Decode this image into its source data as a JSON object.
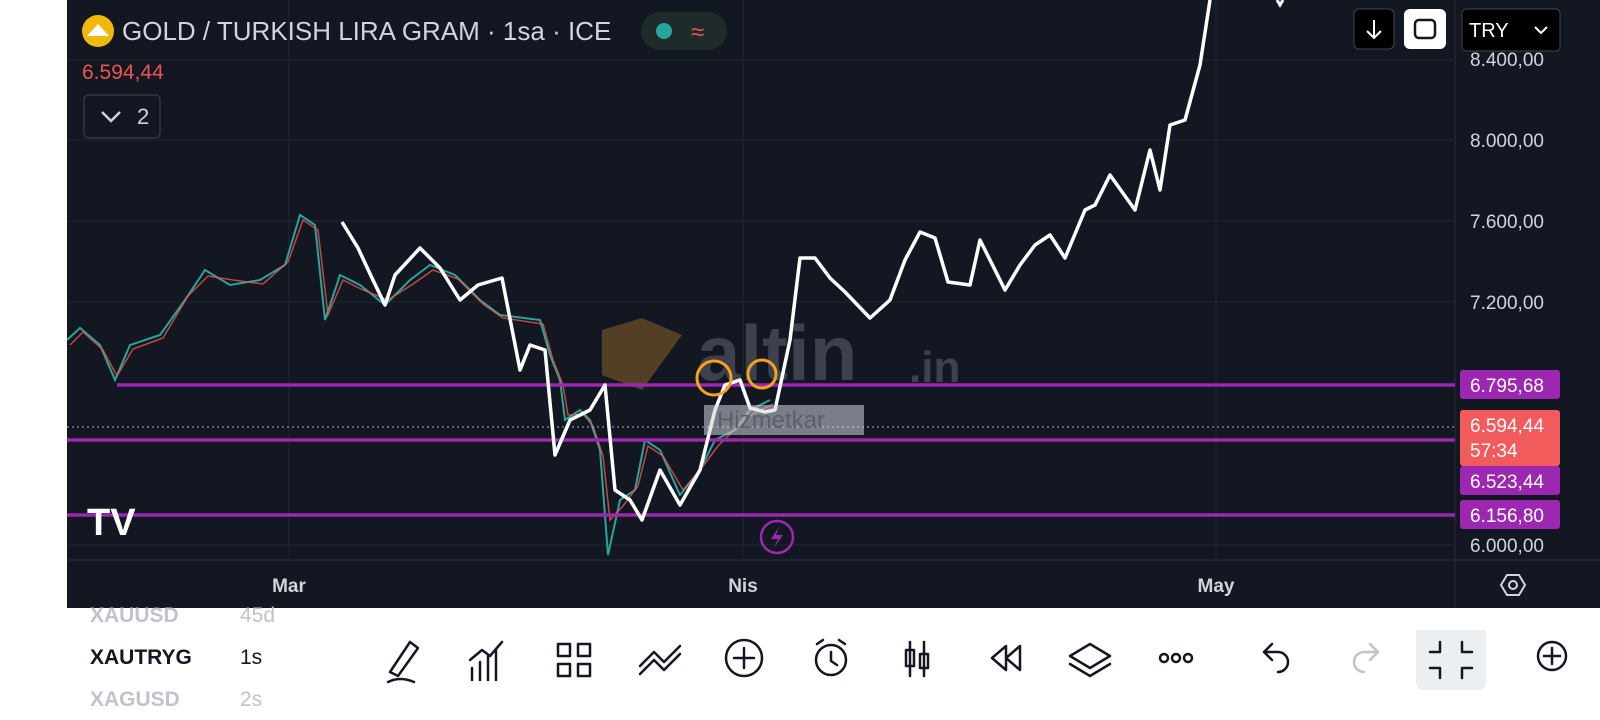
{
  "header": {
    "title": "GOLD / TURKISH LIRA GRAM · 1sa · ICE",
    "price": "6.594,44",
    "indicator_count": "2",
    "currency": "TRY"
  },
  "price_axis": [
    "8.400,00",
    "8.000,00",
    "7.600,00",
    "7.200,00",
    "6.000,00"
  ],
  "price_tags": [
    "6.795,68",
    "6.594,44",
    "6.523,44",
    "6.156,80"
  ],
  "countdown": "57:34",
  "time_axis": [
    "Mar",
    "Nis",
    "May"
  ],
  "watermark": {
    "brand": "altin",
    "suffix": ".in"
  },
  "chart_label": "Hizmetkar",
  "watchlist": [
    {
      "symbol": "XAUUSD",
      "interval": "45d"
    },
    {
      "symbol": "XAUTRYG",
      "interval": "1s"
    },
    {
      "symbol": "XAGUSD",
      "interval": "2s"
    }
  ]
}
